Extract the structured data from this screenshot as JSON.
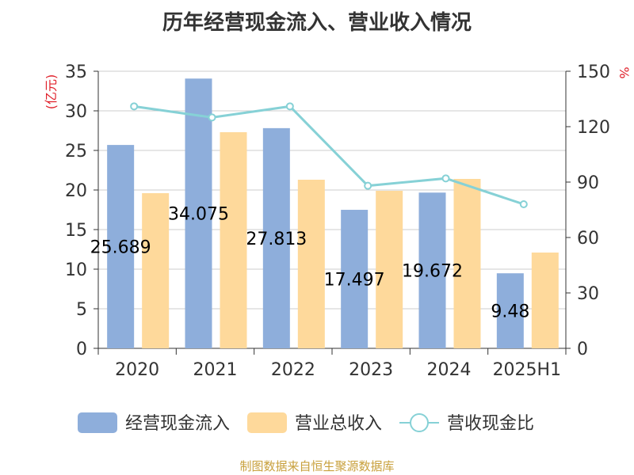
{
  "chart_data": {
    "type": "bar",
    "title": "历年经营现金流入、营业收入情况",
    "categories": [
      "2020",
      "2021",
      "2022",
      "2023",
      "2024",
      "2025H1"
    ],
    "left_axis": {
      "unit_label": "(亿元)",
      "min": 0,
      "max": 35,
      "ticks": [
        0,
        5,
        10,
        15,
        20,
        25,
        30,
        35
      ]
    },
    "right_axis": {
      "unit_label": "%",
      "min": 0,
      "max": 150,
      "ticks": [
        0,
        30,
        60,
        90,
        120,
        150
      ]
    },
    "grid": true,
    "legend_position": "bottom",
    "series": [
      {
        "name": "经营现金流入",
        "type": "bar",
        "axis": "left",
        "color": "#8eaedb",
        "values": [
          25.689,
          34.075,
          27.813,
          17.497,
          19.672,
          9.48
        ],
        "data_labels": [
          "25.689",
          "34.075",
          "27.813",
          "17.497",
          "19.672",
          "9.48"
        ]
      },
      {
        "name": "营业总收入",
        "type": "bar",
        "axis": "left",
        "color": "#fed99b",
        "values": [
          19.6,
          27.3,
          21.3,
          19.9,
          21.4,
          12.1
        ]
      },
      {
        "name": "营收现金比",
        "type": "line",
        "axis": "right",
        "color": "#86d1d6",
        "values": [
          131,
          125,
          131,
          88,
          92,
          78
        ]
      }
    ],
    "footer": "制图数据来自恒生聚源数据库"
  }
}
